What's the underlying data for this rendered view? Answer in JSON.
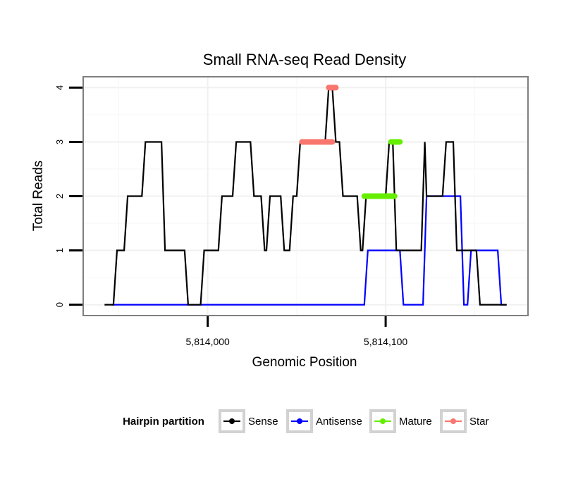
{
  "chart_data": {
    "type": "line",
    "title": "Small RNA-seq Read Density",
    "xlabel": "Genomic Position",
    "ylabel": "Total Reads",
    "xlim": [
      5813930,
      5814180
    ],
    "ylim": [
      -0.2,
      4.2
    ],
    "xticks": [
      {
        "value": 5814000,
        "label": "5,814,000"
      },
      {
        "value": 5814100,
        "label": "5,814,100"
      }
    ],
    "yticks": [
      {
        "value": 0,
        "label": "0"
      },
      {
        "value": 1,
        "label": "1"
      },
      {
        "value": 2,
        "label": "2"
      },
      {
        "value": 3,
        "label": "3"
      },
      {
        "value": 4,
        "label": "4"
      }
    ],
    "grid": true,
    "legend": {
      "title": "Hairpin partition",
      "position": "bottom",
      "entries": [
        "Sense",
        "Antisense",
        "Mature",
        "Star"
      ]
    },
    "series": [
      {
        "name": "Sense",
        "color": "#000000",
        "points": [
          [
            5813942,
            0
          ],
          [
            5813947,
            0
          ],
          [
            5813949,
            1
          ],
          [
            5813953,
            1
          ],
          [
            5813955,
            2
          ],
          [
            5813963,
            2
          ],
          [
            5813965,
            3
          ],
          [
            5813974,
            3
          ],
          [
            5813976,
            1
          ],
          [
            5813987,
            1
          ],
          [
            5813989,
            0
          ],
          [
            5813996,
            0
          ],
          [
            5813998,
            1
          ],
          [
            5814006,
            1
          ],
          [
            5814008,
            2
          ],
          [
            5814014,
            2
          ],
          [
            5814016,
            3
          ],
          [
            5814024,
            3
          ],
          [
            5814026,
            2
          ],
          [
            5814030,
            2
          ],
          [
            5814032,
            1
          ],
          [
            5814033,
            1
          ],
          [
            5814035,
            2
          ],
          [
            5814041,
            2
          ],
          [
            5814043,
            1
          ],
          [
            5814046,
            1
          ],
          [
            5814048,
            2
          ],
          [
            5814050,
            2
          ],
          [
            5814052,
            3
          ],
          [
            5814058,
            3
          ],
          [
            5814060,
            3
          ],
          [
            5814066,
            3
          ],
          [
            5814068,
            4
          ],
          [
            5814070,
            4
          ],
          [
            5814072,
            3
          ],
          [
            5814074,
            3
          ],
          [
            5814076,
            2
          ],
          [
            5814084,
            2
          ],
          [
            5814086,
            1
          ],
          [
            5814087,
            1
          ],
          [
            5814089,
            2
          ],
          [
            5814100,
            2
          ],
          [
            5814102,
            3
          ],
          [
            5814104,
            3
          ],
          [
            5814106,
            1
          ],
          [
            5814120,
            1
          ],
          [
            5814122,
            3
          ],
          [
            5814123,
            2
          ],
          [
            5814132,
            2
          ],
          [
            5814134,
            3
          ],
          [
            5814138,
            3
          ],
          [
            5814140,
            1
          ],
          [
            5814151,
            1
          ],
          [
            5814153,
            0
          ],
          [
            5814168,
            0
          ]
        ]
      },
      {
        "name": "Antisense",
        "color": "#0000ff",
        "points": [
          [
            5813946,
            0
          ],
          [
            5814088,
            0
          ],
          [
            5814090,
            1
          ],
          [
            5814108,
            1
          ],
          [
            5814110,
            0
          ],
          [
            5814121,
            0
          ],
          [
            5814123,
            2
          ],
          [
            5814142,
            2
          ],
          [
            5814144,
            0
          ],
          [
            5814146,
            0
          ],
          [
            5814148,
            1
          ],
          [
            5814163,
            1
          ],
          [
            5814165,
            0
          ],
          [
            5814168,
            0
          ]
        ]
      },
      {
        "name": "Mature",
        "color": "#66ee00",
        "segments": [
          {
            "x0": 5814088,
            "x1": 5814105,
            "y": 2
          },
          {
            "x0": 5814103,
            "x1": 5814108,
            "y": 3
          }
        ]
      },
      {
        "name": "Star",
        "color": "#f8766d",
        "segments": [
          {
            "x0": 5814053,
            "x1": 5814070,
            "y": 3
          },
          {
            "x0": 5814068,
            "x1": 5814072,
            "y": 4
          }
        ]
      }
    ]
  }
}
